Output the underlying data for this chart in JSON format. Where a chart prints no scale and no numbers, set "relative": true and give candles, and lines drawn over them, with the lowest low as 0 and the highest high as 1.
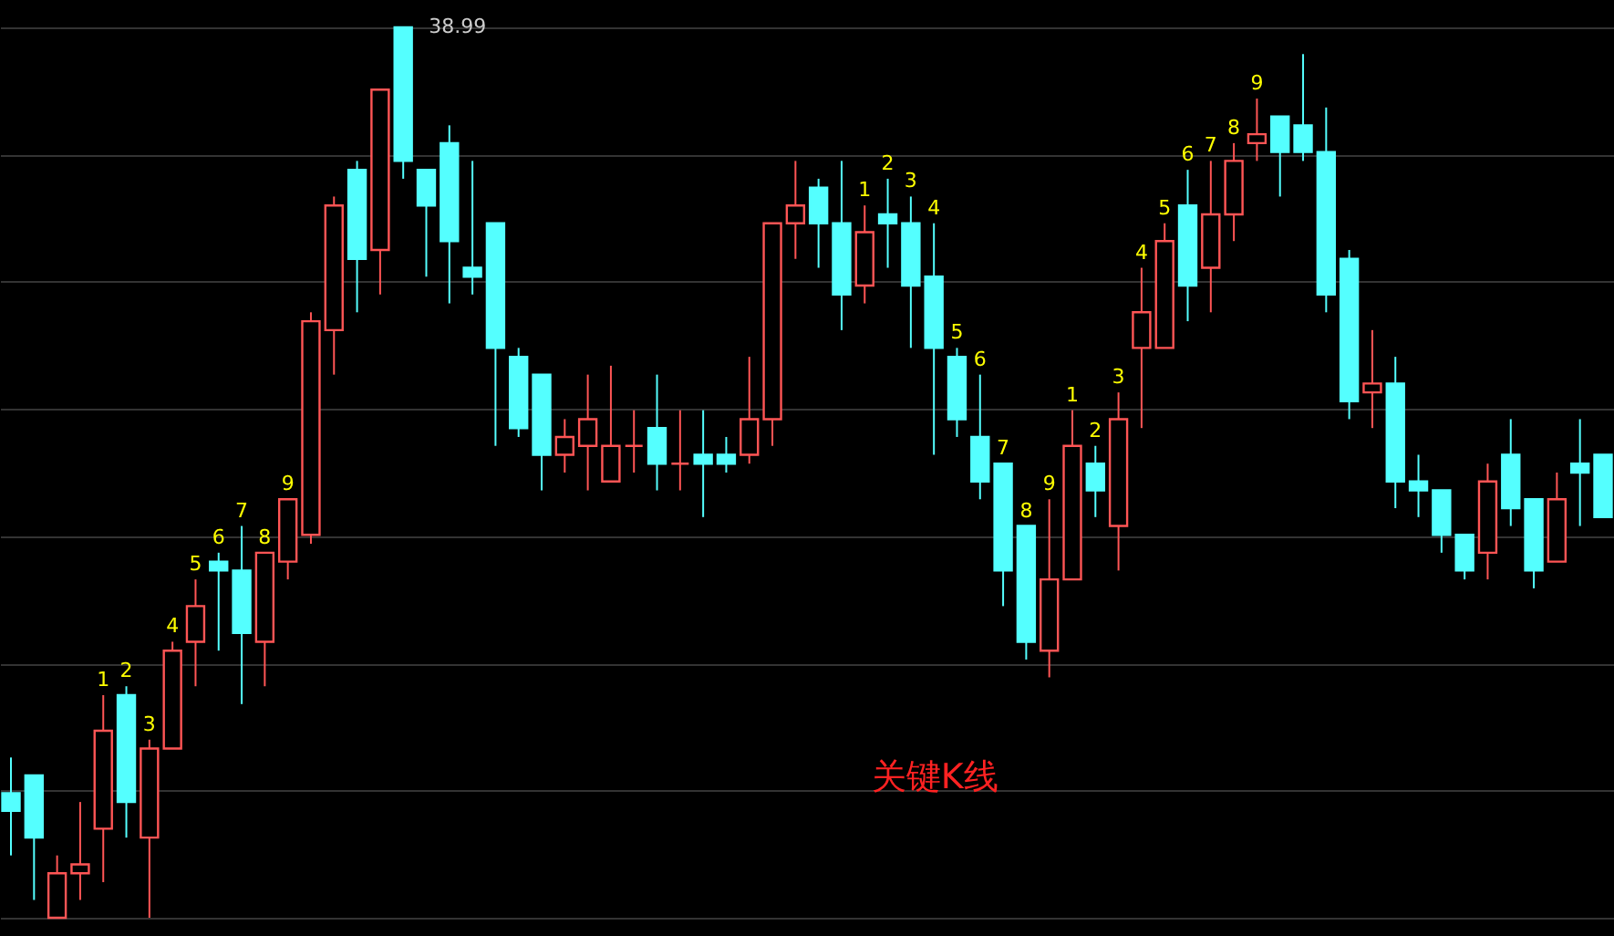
{
  "chart_data": {
    "type": "candlestick",
    "relative": true,
    "grid": "y",
    "categories": [
      null,
      null,
      null,
      null,
      null,
      null,
      null,
      null,
      null,
      null,
      null,
      null,
      null,
      null,
      null,
      null,
      null,
      null,
      null,
      null,
      null,
      null,
      null,
      null,
      null,
      null,
      null,
      null,
      null,
      null,
      null,
      null,
      null,
      null,
      null,
      null,
      null,
      null,
      null,
      null,
      null,
      null,
      null,
      null,
      null,
      null,
      null,
      null,
      null,
      null,
      null,
      null,
      null,
      null,
      null,
      null,
      null,
      null,
      null,
      null,
      null,
      null,
      null,
      null,
      null,
      null,
      null,
      null,
      null,
      null
    ],
    "ohlc": [
      [
        0.14,
        0.18,
        0.07,
        0.12
      ],
      [
        0.16,
        0.16,
        0.02,
        0.09
      ],
      [
        0.0,
        0.07,
        0.0,
        0.05
      ],
      [
        0.05,
        0.13,
        0.02,
        0.06
      ],
      [
        0.1,
        0.25,
        0.04,
        0.21
      ],
      [
        0.25,
        0.26,
        0.09,
        0.13
      ],
      [
        0.09,
        0.2,
        0.0,
        0.19
      ],
      [
        0.19,
        0.31,
        0.19,
        0.3
      ],
      [
        0.31,
        0.38,
        0.26,
        0.35
      ],
      [
        0.4,
        0.41,
        0.3,
        0.39
      ],
      [
        0.39,
        0.44,
        0.24,
        0.32
      ],
      [
        0.31,
        0.41,
        0.26,
        0.41
      ],
      [
        0.4,
        0.47,
        0.38,
        0.47
      ],
      [
        0.43,
        0.68,
        0.42,
        0.67
      ],
      [
        0.66,
        0.81,
        0.61,
        0.8
      ],
      [
        0.84,
        0.85,
        0.68,
        0.74
      ],
      [
        0.75,
        0.93,
        0.7,
        0.93
      ],
      [
        1.0,
        1.0,
        0.83,
        0.85
      ],
      [
        0.84,
        0.84,
        0.72,
        0.8
      ],
      [
        0.87,
        0.89,
        0.69,
        0.76
      ],
      [
        0.73,
        0.85,
        0.7,
        0.72
      ],
      [
        0.78,
        0.78,
        0.53,
        0.64
      ],
      [
        0.63,
        0.64,
        0.54,
        0.55
      ],
      [
        0.61,
        0.61,
        0.48,
        0.52
      ],
      [
        0.52,
        0.56,
        0.5,
        0.54
      ],
      [
        0.53,
        0.61,
        0.48,
        0.56
      ],
      [
        0.49,
        0.62,
        0.49,
        0.53
      ],
      [
        0.53,
        0.57,
        0.5,
        0.53
      ],
      [
        0.55,
        0.61,
        0.48,
        0.51
      ],
      [
        0.51,
        0.57,
        0.48,
        0.51
      ],
      [
        0.52,
        0.57,
        0.45,
        0.51
      ],
      [
        0.52,
        0.54,
        0.5,
        0.51
      ],
      [
        0.52,
        0.63,
        0.51,
        0.56
      ],
      [
        0.56,
        0.78,
        0.53,
        0.78
      ],
      [
        0.78,
        0.85,
        0.74,
        0.8
      ],
      [
        0.82,
        0.83,
        0.73,
        0.78
      ],
      [
        0.78,
        0.85,
        0.66,
        0.7
      ],
      [
        0.71,
        0.8,
        0.69,
        0.77
      ],
      [
        0.79,
        0.83,
        0.73,
        0.78
      ],
      [
        0.78,
        0.81,
        0.64,
        0.71
      ],
      [
        0.72,
        0.78,
        0.52,
        0.64
      ],
      [
        0.63,
        0.64,
        0.54,
        0.56
      ],
      [
        0.54,
        0.61,
        0.47,
        0.49
      ],
      [
        0.51,
        0.51,
        0.35,
        0.39
      ],
      [
        0.44,
        0.44,
        0.29,
        0.31
      ],
      [
        0.3,
        0.47,
        0.27,
        0.38
      ],
      [
        0.38,
        0.57,
        0.38,
        0.53
      ],
      [
        0.51,
        0.53,
        0.45,
        0.48
      ],
      [
        0.44,
        0.59,
        0.39,
        0.56
      ],
      [
        0.64,
        0.73,
        0.55,
        0.68
      ],
      [
        0.64,
        0.78,
        0.64,
        0.76
      ],
      [
        0.8,
        0.84,
        0.67,
        0.71
      ],
      [
        0.73,
        0.85,
        0.68,
        0.79
      ],
      [
        0.79,
        0.87,
        0.76,
        0.85
      ],
      [
        0.87,
        0.92,
        0.85,
        0.88
      ],
      [
        0.9,
        0.9,
        0.81,
        0.86
      ],
      [
        0.89,
        0.97,
        0.85,
        0.86
      ],
      [
        0.86,
        0.91,
        0.68,
        0.7
      ],
      [
        0.74,
        0.75,
        0.56,
        0.58
      ],
      [
        0.59,
        0.66,
        0.55,
        0.6
      ],
      [
        0.6,
        0.63,
        0.46,
        0.49
      ],
      [
        0.49,
        0.52,
        0.45,
        0.48
      ],
      [
        0.48,
        0.48,
        0.41,
        0.43
      ],
      [
        0.43,
        0.43,
        0.38,
        0.39
      ],
      [
        0.41,
        0.51,
        0.38,
        0.49
      ],
      [
        0.52,
        0.56,
        0.44,
        0.46
      ],
      [
        0.47,
        0.47,
        0.37,
        0.39
      ],
      [
        0.4,
        0.5,
        0.4,
        0.47
      ],
      [
        0.51,
        0.56,
        0.44,
        0.5
      ],
      [
        0.52,
        0.52,
        0.45,
        0.45
      ]
    ],
    "colors": [
      "#54ffff",
      "#54ffff",
      "#ff5555",
      "#ff5555",
      "#ff5555",
      "#54ffff",
      "#ff5555",
      "#ff5555",
      "#ff5555",
      "#54ffff",
      "#54ffff",
      "#ff5555",
      "#ff5555",
      "#ff5555",
      "#ff5555",
      "#54ffff",
      "#ff5555",
      "#54ffff",
      "#54ffff",
      "#54ffff",
      "#54ffff",
      "#54ffff",
      "#54ffff",
      "#54ffff",
      "#ff5555",
      "#ff5555",
      "#ff5555",
      "#ff5555",
      "#54ffff",
      "#ff5555",
      "#54ffff",
      "#54ffff",
      "#ff5555",
      "#ff5555",
      "#ff5555",
      "#54ffff",
      "#54ffff",
      "#ff5555",
      "#54ffff",
      "#54ffff",
      "#54ffff",
      "#54ffff",
      "#54ffff",
      "#54ffff",
      "#54ffff",
      "#ff5555",
      "#ff5555",
      "#54ffff",
      "#ff5555",
      "#ff5555",
      "#ff5555",
      "#54ffff",
      "#ff5555",
      "#ff5555",
      "#ff5555",
      "#54ffff",
      "#54ffff",
      "#54ffff",
      "#54ffff",
      "#ff5555",
      "#54ffff",
      "#54ffff",
      "#54ffff",
      "#54ffff",
      "#ff5555",
      "#54ffff",
      "#54ffff",
      "#ff5555",
      "#54ffff",
      "#54ffff"
    ],
    "value_labels": [
      null,
      null,
      null,
      null,
      "1",
      "2",
      "3",
      "4",
      "5",
      "6",
      "7",
      "8",
      "9",
      null,
      null,
      null,
      null,
      null,
      null,
      null,
      null,
      null,
      null,
      null,
      null,
      null,
      null,
      null,
      null,
      null,
      null,
      null,
      null,
      null,
      null,
      null,
      null,
      "1",
      "2",
      "3",
      "4",
      "5",
      "6",
      "7",
      "8",
      "9",
      "1",
      "2",
      "3",
      "4",
      "5",
      "6",
      "7",
      "8",
      "9",
      null,
      null,
      null,
      null,
      null,
      null,
      null,
      null,
      null,
      null,
      null,
      null,
      null,
      null,
      null
    ],
    "annotations": [
      "38.99",
      "关键K线"
    ]
  }
}
